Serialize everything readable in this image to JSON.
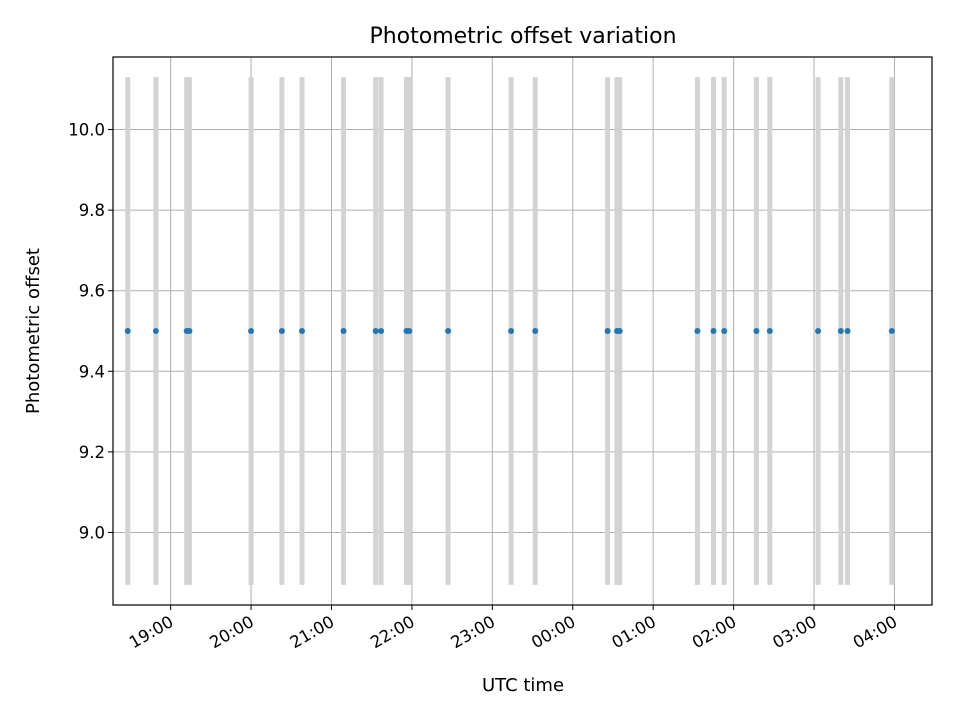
{
  "chart_data": {
    "type": "scatter",
    "title": "Photometric offset variation",
    "xlabel": "UTC time",
    "ylabel": "Photometric offset",
    "x_axis": {
      "kind": "time",
      "range": [
        "18:17",
        "04:28"
      ],
      "ticks": [
        {
          "time": "19:00",
          "label": "19:00"
        },
        {
          "time": "20:00",
          "label": "20:00"
        },
        {
          "time": "21:00",
          "label": "21:00"
        },
        {
          "time": "22:00",
          "label": "22:00"
        },
        {
          "time": "23:00",
          "label": "23:00"
        },
        {
          "time": "00:00",
          "label": "00:00"
        },
        {
          "time": "01:00",
          "label": "01:00"
        },
        {
          "time": "02:00",
          "label": "02:00"
        },
        {
          "time": "03:00",
          "label": "03:00"
        },
        {
          "time": "04:00",
          "label": "04:00"
        }
      ]
    },
    "ylim": [
      8.82,
      10.18
    ],
    "yticks": [
      {
        "value": 9.0,
        "label": "9.0"
      },
      {
        "value": 9.2,
        "label": "9.2"
      },
      {
        "value": 9.4,
        "label": "9.4"
      },
      {
        "value": 9.6,
        "label": "9.6"
      },
      {
        "value": 9.8,
        "label": "9.8"
      },
      {
        "value": 10.0,
        "label": "10.0"
      }
    ],
    "grid": true,
    "error_bar": {
      "low": 8.87,
      "high": 10.13
    },
    "series": [
      {
        "color": "#1f77b4",
        "error_color": "#d3d3d3",
        "points": [
          {
            "time": "18:28",
            "y": 9.5
          },
          {
            "time": "18:49",
            "y": 9.5
          },
          {
            "time": "19:12",
            "y": 9.5
          },
          {
            "time": "19:14",
            "y": 9.5
          },
          {
            "time": "20:00",
            "y": 9.5
          },
          {
            "time": "20:23",
            "y": 9.5
          },
          {
            "time": "20:38",
            "y": 9.5
          },
          {
            "time": "21:09",
            "y": 9.5
          },
          {
            "time": "21:33",
            "y": 9.5
          },
          {
            "time": "21:37",
            "y": 9.5
          },
          {
            "time": "21:56",
            "y": 9.5
          },
          {
            "time": "21:58",
            "y": 9.5
          },
          {
            "time": "22:27",
            "y": 9.5
          },
          {
            "time": "23:14",
            "y": 9.5
          },
          {
            "time": "23:32",
            "y": 9.5
          },
          {
            "time": "00:26",
            "y": 9.5
          },
          {
            "time": "00:33",
            "y": 9.5
          },
          {
            "time": "00:35",
            "y": 9.5
          },
          {
            "time": "01:33",
            "y": 9.5
          },
          {
            "time": "01:45",
            "y": 9.5
          },
          {
            "time": "01:53",
            "y": 9.5
          },
          {
            "time": "02:17",
            "y": 9.5
          },
          {
            "time": "02:27",
            "y": 9.5
          },
          {
            "time": "03:03",
            "y": 9.5
          },
          {
            "time": "03:20",
            "y": 9.5
          },
          {
            "time": "03:25",
            "y": 9.5
          },
          {
            "time": "03:58",
            "y": 9.5
          }
        ]
      }
    ]
  }
}
